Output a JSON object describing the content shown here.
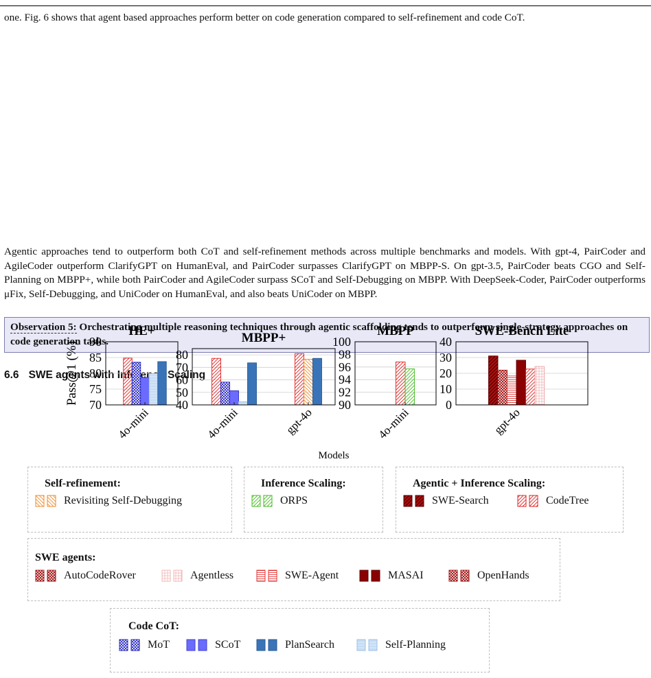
{
  "text": {
    "para1": "one. Fig. 6 shows that agent based approaches perform better on code generation compared to self-refinement and code CoT.",
    "para2": "Agentic approaches tend to outperform both CoT and self-refinement methods across multiple benchmarks and models. With gpt-4, PairCoder and AgileCoder outperform ClarifyGPT on HumanEval, and PairCoder surpasses ClarifyGPT on MBPP-S. On gpt-3.5, PairCoder beats CGO and Self-Planning on MBPP+, while both PairCoder and AgileCoder surpass SCoT and Self-Debugging on MBPP. With DeepSeek-Coder, PairCoder outperforms μFix, Self-Debugging, and UniCoder on HumanEval, and also beats UniCoder on MBPP.",
    "observation_lead": "Observation 5:",
    "observation_body": " Orchestrating multiple reasoning techniques through agentic scaffolding tends to outperform single-strategy approaches on code generation tasks.",
    "section_number": "6.6",
    "section_title": "SWE agents with Inference Scaling"
  },
  "chart_data": {
    "type": "bar",
    "ylabel": "Pass@1 (%)",
    "xlabel": "Models",
    "panels": [
      {
        "title": "HE+",
        "ylim": [
          70,
          90
        ],
        "yticks": [
          70,
          75,
          80,
          85,
          90
        ],
        "groups": [
          {
            "label": "4o-mini",
            "bars": [
              {
                "method": "Revisiting Self-Debugging",
                "value": 84.8
              },
              {
                "method": "MoT",
                "value": 83.5
              },
              {
                "method": "SCoT",
                "value": 78.7
              },
              {
                "method": "Self-Planning",
                "value": 79.9
              },
              {
                "method": "PlanSearch",
                "value": 83.7
              }
            ]
          }
        ]
      },
      {
        "title": "MBPP+",
        "ylim": [
          40,
          85
        ],
        "yticks": [
          40,
          50,
          60,
          70,
          80
        ],
        "groups": [
          {
            "label": "4o-mini",
            "bars": [
              {
                "method": "Revisiting Self-Debugging",
                "value": 77.2
              },
              {
                "method": "MoT",
                "value": 58.2
              },
              {
                "method": "SCoT",
                "value": 51.3
              },
              {
                "method": "Self-Planning",
                "value": 42.5
              },
              {
                "method": "PlanSearch",
                "value": 73.6
              }
            ]
          },
          {
            "label": "gpt-4o",
            "bars": [
              {
                "method": "Revisiting Self-Debugging",
                "value": 81.0
              },
              {
                "method": "Self-Refinement (orange)",
                "value": 76.5
              },
              {
                "method": "PlanSearch",
                "value": 77.2
              }
            ]
          }
        ]
      },
      {
        "title": "MBPP",
        "ylim": [
          90,
          100
        ],
        "yticks": [
          90,
          92,
          94,
          96,
          98,
          100
        ],
        "groups": [
          {
            "label": "4o-mini",
            "bars": [
              {
                "method": "CodeTree",
                "value": 96.8
              },
              {
                "method": "ORPS",
                "value": 95.7
              }
            ]
          }
        ]
      },
      {
        "title": "SWE-Bench Lite",
        "ylim": [
          0,
          40
        ],
        "yticks": [
          0,
          10,
          20,
          30,
          40
        ],
        "groups": [
          {
            "label": "gpt-4o",
            "bars": [
              {
                "method": "SWE-Search",
                "value": 31.0
              },
              {
                "method": "OpenHands",
                "value": 22.0
              },
              {
                "method": "SWE-Agent",
                "value": 18.3
              },
              {
                "method": "MASAI",
                "value": 28.3
              },
              {
                "method": "CodeTree",
                "value": 22.7
              },
              {
                "method": "Agentless",
                "value": 24.3
              }
            ]
          }
        ]
      }
    ],
    "legend": [
      {
        "title": "Self-refinement:",
        "items": [
          "Revisiting Self-Debugging"
        ]
      },
      {
        "title": "Inference Scaling:",
        "items": [
          "ORPS"
        ]
      },
      {
        "title": "Agentic + Inference Scaling:",
        "items": [
          "SWE-Search",
          "CodeTree"
        ]
      },
      {
        "title": "SWE agents:",
        "items": [
          "AutoCodeRover",
          "Agentless",
          "SWE-Agent",
          "MASAI",
          "OpenHands"
        ]
      },
      {
        "title": "Code CoT:",
        "items": [
          "MoT",
          "SCoT",
          "PlanSearch",
          "Self-Planning"
        ]
      }
    ]
  }
}
